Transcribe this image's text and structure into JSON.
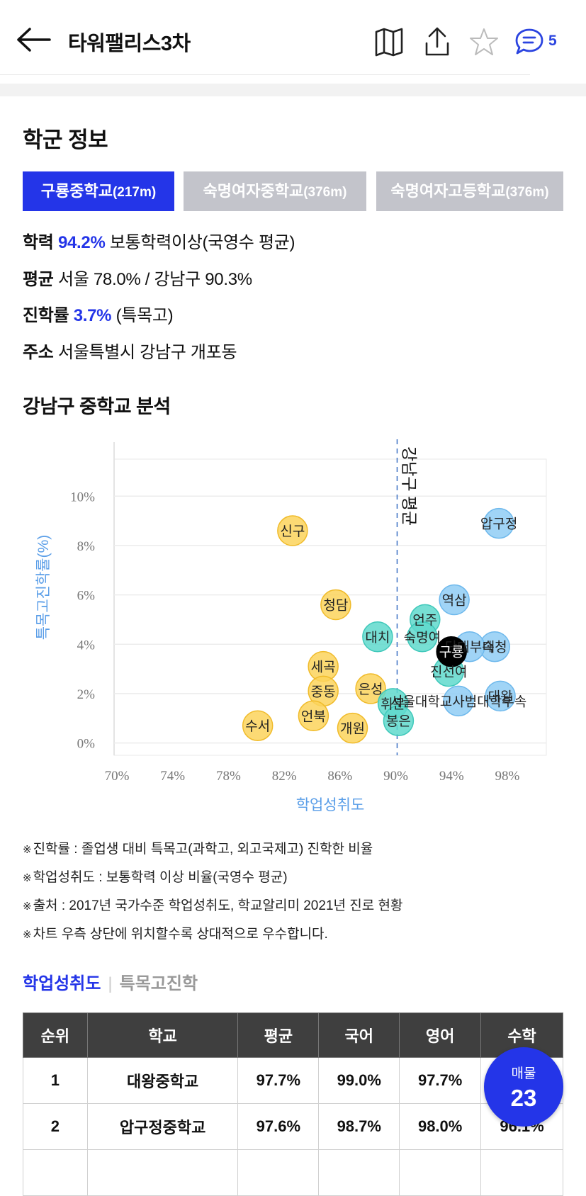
{
  "header": {
    "title": "타워팰리스3차",
    "comment_count": "5"
  },
  "section_title": "학군 정보",
  "tabs": [
    {
      "name": "구룡중학교",
      "dist": "(217m)"
    },
    {
      "name": "숙명여자중학교",
      "dist": "(376m)"
    },
    {
      "name": "숙명여자고등학교",
      "dist": "(376m)"
    }
  ],
  "info": {
    "row1": {
      "label": "학력",
      "value": "94.2%",
      "rest": "보통학력이상(국영수 평균)"
    },
    "row2": {
      "label": "평균",
      "rest": "서울 78.0% / 강남구 90.3%"
    },
    "row3": {
      "label": "진학률",
      "value": "3.7%",
      "rest": "(특목고)"
    },
    "row4": {
      "label": "주소",
      "rest": "서울특별시 강남구 개포동"
    }
  },
  "analysis_title": "강남구 중학교 분석",
  "chart_data": {
    "type": "scatter",
    "xlabel": "학업성취도",
    "ylabel": "특목고진학률(%)",
    "x_ticks": [
      "70%",
      "74%",
      "78%",
      "82%",
      "86%",
      "90%",
      "94%",
      "98%"
    ],
    "y_ticks": [
      "0%",
      "2%",
      "4%",
      "6%",
      "8%",
      "10%"
    ],
    "xlim": [
      70,
      101
    ],
    "ylim": [
      -0.5,
      11.5
    ],
    "reference_line": {
      "x": 90.3,
      "label": "강남구 평균"
    },
    "colors": {
      "yellow": "#fbd35c",
      "teal": "#5fd9cc",
      "blue": "#8fcdf5",
      "highlight": "#000000"
    },
    "points": [
      {
        "label": "신구",
        "x": 82.8,
        "y": 8.6,
        "group": "yellow"
      },
      {
        "label": "청담",
        "x": 85.9,
        "y": 5.6,
        "group": "yellow"
      },
      {
        "label": "세곡",
        "x": 85.0,
        "y": 3.1,
        "group": "yellow"
      },
      {
        "label": "중동",
        "x": 85.0,
        "y": 2.1,
        "group": "yellow"
      },
      {
        "label": "은성",
        "x": 88.4,
        "y": 2.2,
        "group": "yellow"
      },
      {
        "label": "언북",
        "x": 84.3,
        "y": 1.1,
        "group": "yellow"
      },
      {
        "label": "수서",
        "x": 80.3,
        "y": 0.7,
        "group": "yellow"
      },
      {
        "label": "개원",
        "x": 87.1,
        "y": 0.6,
        "group": "yellow"
      },
      {
        "label": "대치",
        "x": 88.9,
        "y": 4.3,
        "group": "teal"
      },
      {
        "label": "언주",
        "x": 92.3,
        "y": 5.0,
        "group": "teal"
      },
      {
        "label": "숙명여",
        "x": 92.1,
        "y": 4.3,
        "group": "teal"
      },
      {
        "label": "진선여",
        "x": 94.0,
        "y": 2.9,
        "group": "teal"
      },
      {
        "label": "휘문",
        "x": 90.0,
        "y": 1.6,
        "group": "teal"
      },
      {
        "label": "봉은",
        "x": 90.4,
        "y": 0.9,
        "group": "teal"
      },
      {
        "label": "역삼",
        "x": 94.4,
        "y": 5.8,
        "group": "blue"
      },
      {
        "label": "압구정",
        "x": 97.6,
        "y": 8.9,
        "group": "blue"
      },
      {
        "label": "대청",
        "x": 97.3,
        "y": 3.9,
        "group": "blue"
      },
      {
        "label": "단대부속",
        "x": 95.5,
        "y": 3.9,
        "group": "blue"
      },
      {
        "label": "서울대학교사범대학부속",
        "x": 94.7,
        "y": 1.7,
        "group": "blue"
      },
      {
        "label": "대왕",
        "x": 97.7,
        "y": 1.9,
        "group": "blue"
      },
      {
        "label": "구룡",
        "x": 94.2,
        "y": 3.7,
        "group": "highlight"
      }
    ]
  },
  "notes": [
    "진학률 : 졸업생 대비 특목고(과학고, 외고국제고) 진학한 비율",
    "학업성취도 : 보통학력 이상 비율(국영수 평균)",
    "출처 : 2017년 국가수준 학업성취도, 학교알리미 2021년 진로 현황",
    "차트 우측 상단에 위치할수록 상대적으로 우수합니다."
  ],
  "note_mark": "※",
  "sort_tabs": {
    "active": "학업성취도",
    "inactive": "특목고진학"
  },
  "table": {
    "headers": [
      "순위",
      "학교",
      "평균",
      "국어",
      "영어",
      "수학"
    ],
    "rows": [
      [
        "1",
        "대왕중학교",
        "97.7%",
        "99.0%",
        "97.7%",
        ""
      ],
      [
        "2",
        "압구정중학교",
        "97.6%",
        "98.7%",
        "98.0%",
        "96.1%"
      ]
    ]
  },
  "fab": {
    "label": "매물",
    "count": "23"
  }
}
